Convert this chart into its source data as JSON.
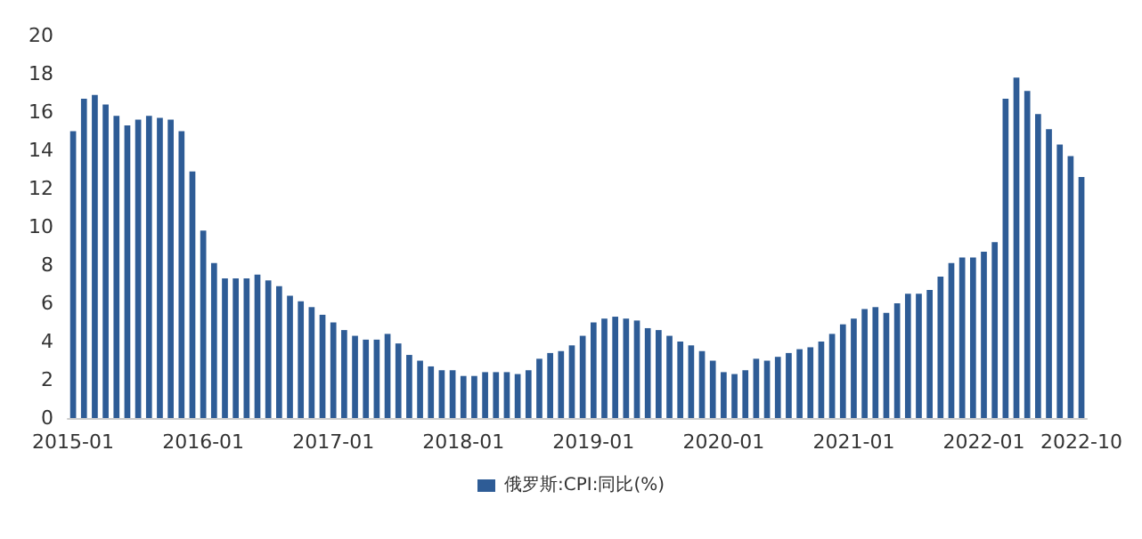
{
  "chart_data": {
    "type": "bar",
    "categories": [
      "2015-01",
      null,
      null,
      null,
      null,
      null,
      null,
      null,
      null,
      null,
      null,
      null,
      "2016-01",
      null,
      null,
      null,
      null,
      null,
      null,
      null,
      null,
      null,
      null,
      null,
      "2017-01",
      null,
      null,
      null,
      null,
      null,
      null,
      null,
      null,
      null,
      null,
      null,
      "2018-01",
      null,
      null,
      null,
      null,
      null,
      null,
      null,
      null,
      null,
      null,
      null,
      "2019-01",
      null,
      null,
      null,
      null,
      null,
      null,
      null,
      null,
      null,
      null,
      null,
      "2020-01",
      null,
      null,
      null,
      null,
      null,
      null,
      null,
      null,
      null,
      null,
      null,
      "2021-01",
      null,
      null,
      null,
      null,
      null,
      null,
      null,
      null,
      null,
      null,
      null,
      "2022-01",
      null,
      null,
      null,
      null,
      null,
      null,
      null,
      null,
      "2022-10"
    ],
    "series": [
      {
        "name": "俄罗斯:CPI:同比(%)",
        "color": "#2e5c96",
        "values": [
          15.0,
          16.7,
          16.9,
          16.4,
          15.8,
          15.3,
          15.6,
          15.8,
          15.7,
          15.6,
          15.0,
          12.9,
          9.8,
          8.1,
          7.3,
          7.3,
          7.3,
          7.5,
          7.2,
          6.9,
          6.4,
          6.1,
          5.8,
          5.4,
          5.0,
          4.6,
          4.3,
          4.1,
          4.1,
          4.4,
          3.9,
          3.3,
          3.0,
          2.7,
          2.5,
          2.5,
          2.2,
          2.2,
          2.4,
          2.4,
          2.4,
          2.3,
          2.5,
          3.1,
          3.4,
          3.5,
          3.8,
          4.3,
          5.0,
          5.2,
          5.3,
          5.2,
          5.1,
          4.7,
          4.6,
          4.3,
          4.0,
          3.8,
          3.5,
          3.0,
          2.4,
          2.3,
          2.5,
          3.1,
          3.0,
          3.2,
          3.4,
          3.6,
          3.7,
          4.0,
          4.4,
          4.9,
          5.2,
          5.7,
          5.8,
          5.5,
          6.0,
          6.5,
          6.5,
          6.7,
          7.4,
          8.1,
          8.4,
          8.4,
          8.7,
          9.2,
          16.7,
          17.8,
          17.1,
          15.9,
          15.1,
          14.3,
          13.7,
          12.6
        ]
      }
    ],
    "ylim": [
      0,
      20
    ],
    "yticks": [
      0,
      2,
      4,
      6,
      8,
      10,
      12,
      14,
      16,
      18,
      20
    ],
    "grid": false,
    "legend": "bottom"
  }
}
